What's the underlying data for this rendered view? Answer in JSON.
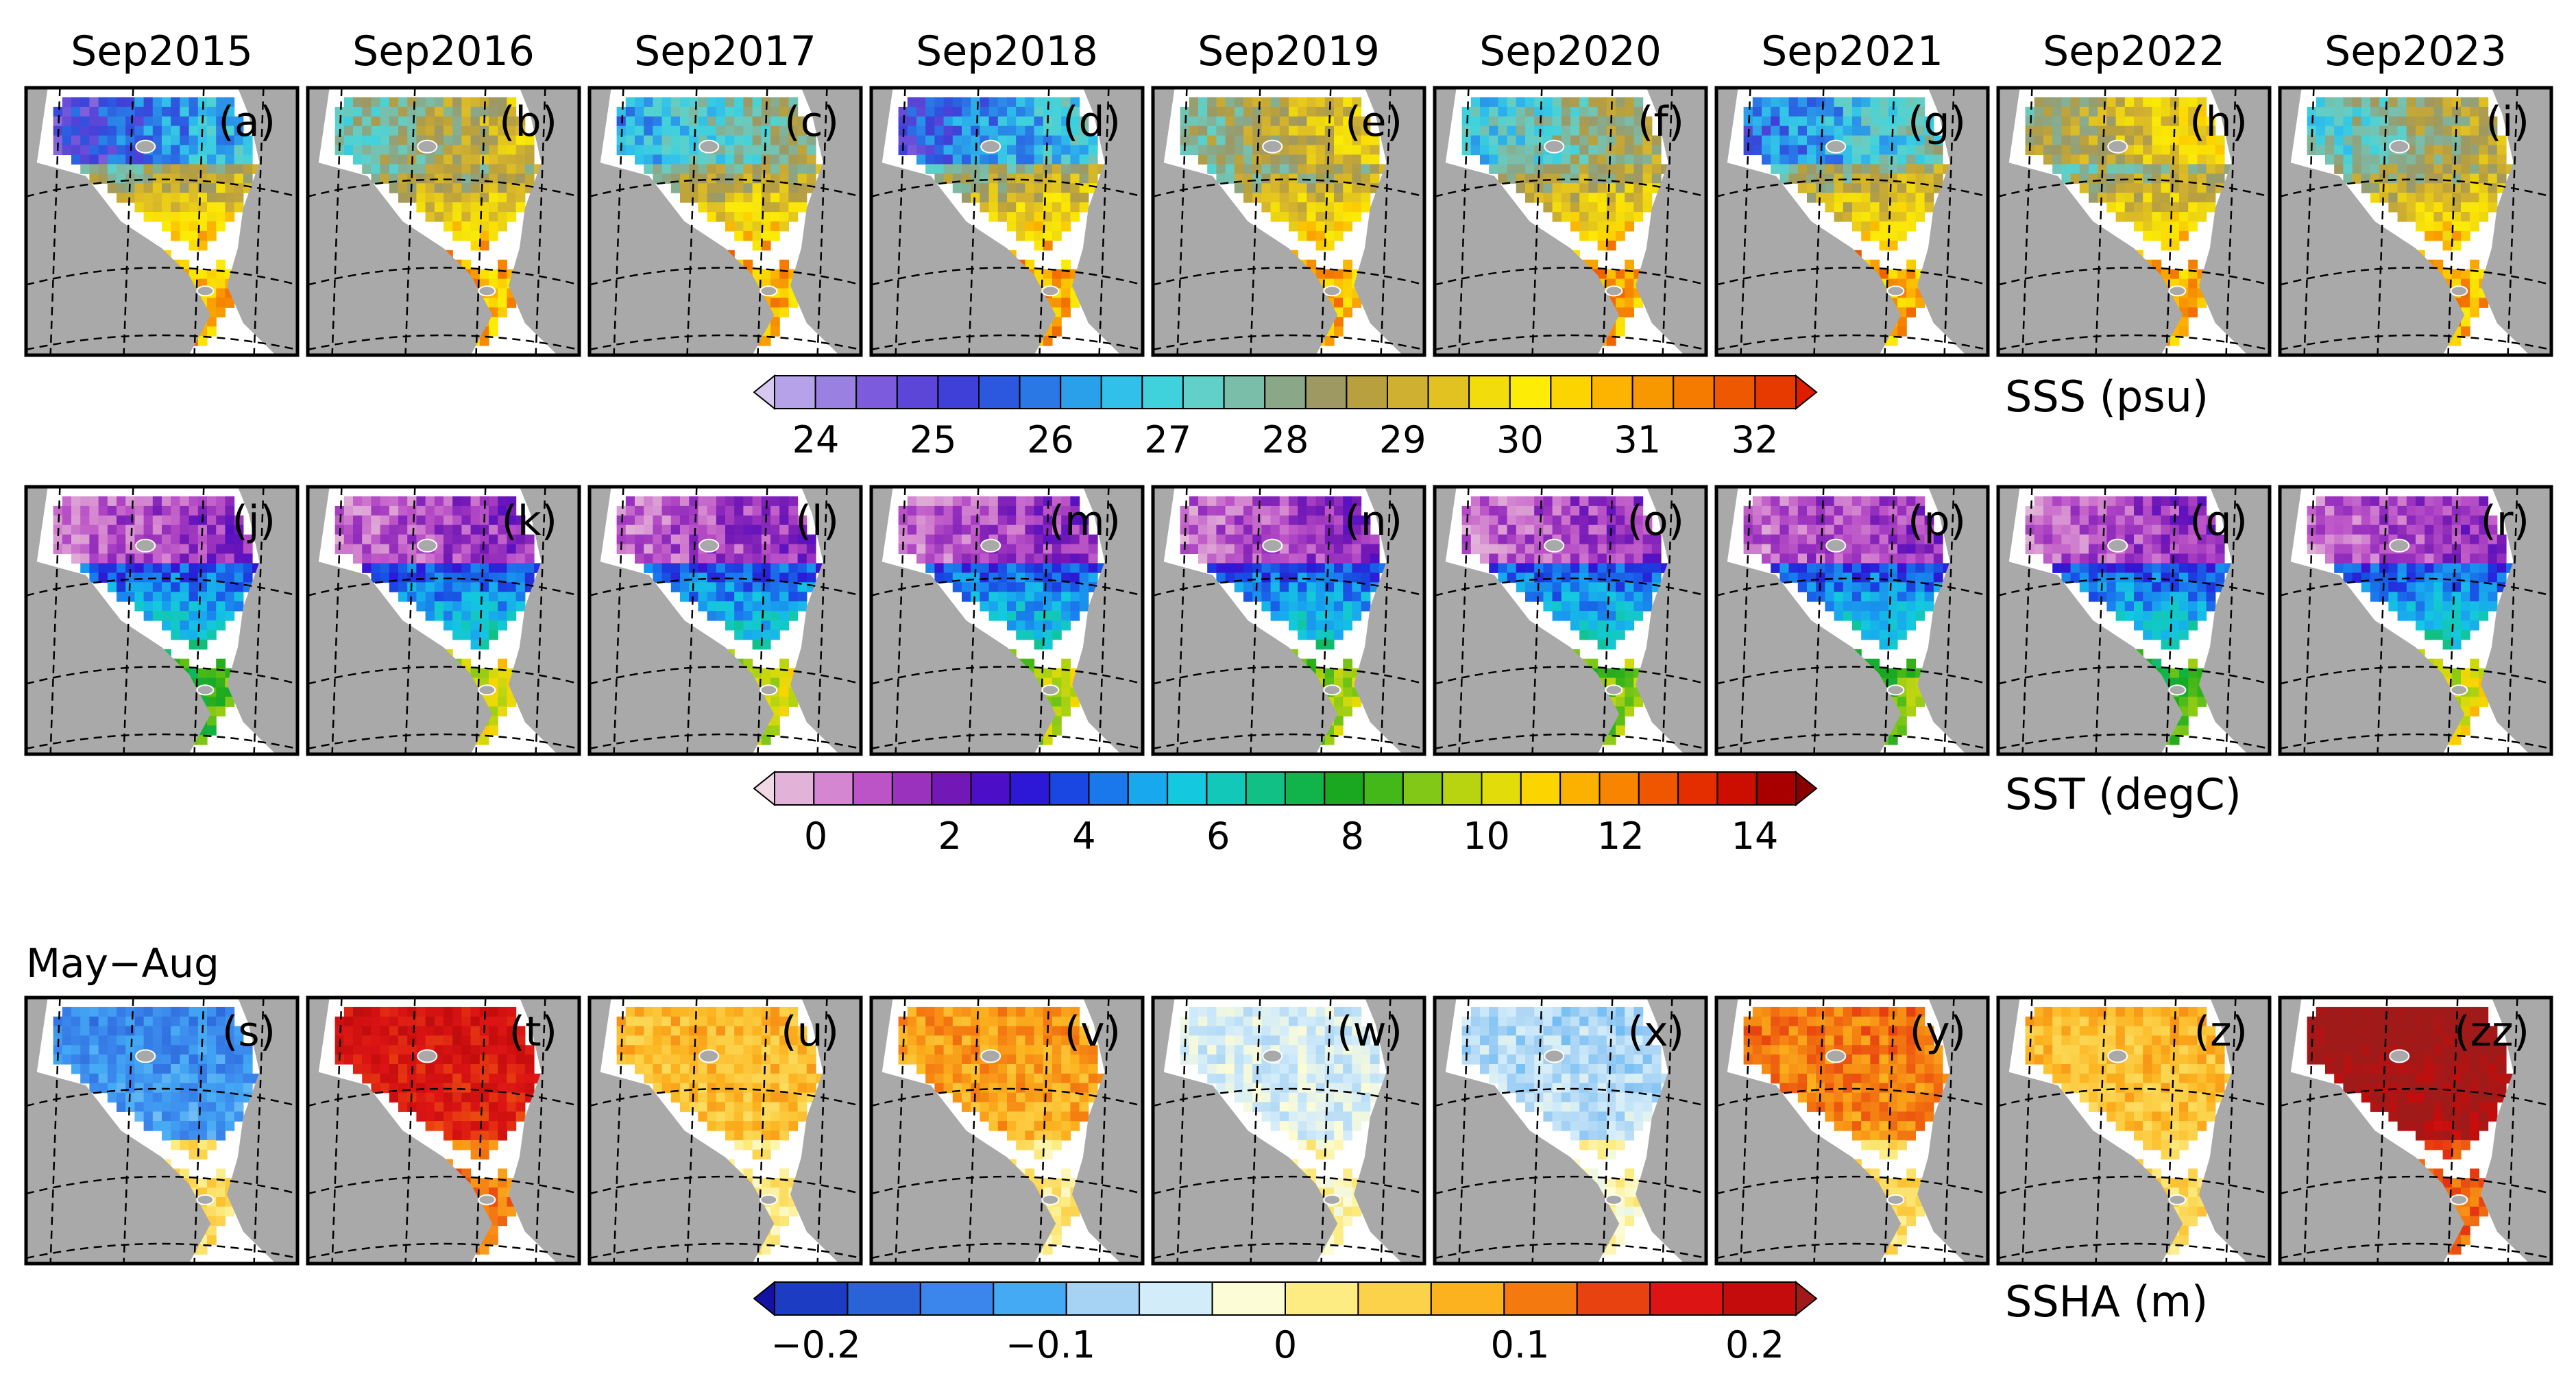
{
  "figure": {
    "years": [
      "Sep2015",
      "Sep2016",
      "Sep2017",
      "Sep2018",
      "Sep2019",
      "Sep2020",
      "Sep2021",
      "Sep2022",
      "Sep2023"
    ],
    "period_label": "May−Aug"
  },
  "chart_data": [
    {
      "type": "heatmap",
      "variable": "SSS",
      "colorbar_label": "SSS (psu)",
      "panel_labels": [
        "(a)",
        "(b)",
        "(c)",
        "(d)",
        "(e)",
        "(f)",
        "(g)",
        "(h)",
        "(i)"
      ],
      "ticks": [
        "24",
        "25",
        "26",
        "27",
        "28",
        "29",
        "30",
        "31",
        "32"
      ],
      "range": [
        24,
        32
      ],
      "colors": [
        "#d6c8f0",
        "#b6a2e8",
        "#9a80e0",
        "#7c5cdc",
        "#5c46d8",
        "#3e40d8",
        "#2c58e0",
        "#2a78e6",
        "#2aa0ea",
        "#30c0ea",
        "#40d2dc",
        "#60d0c8",
        "#7abeaa",
        "#8aa888",
        "#9e9862",
        "#b8a03e",
        "#d0b030",
        "#e2c220",
        "#f2dc0c",
        "#fcec06",
        "#fcd400",
        "#fcb400",
        "#f89800",
        "#f47a00",
        "#ee5800",
        "#e63a00",
        "#de1c00"
      ]
    },
    {
      "type": "heatmap",
      "variable": "SST",
      "colorbar_label": "SST (degC)",
      "panel_labels": [
        "(j)",
        "(k)",
        "(l)",
        "(m)",
        "(n)",
        "(o)",
        "(p)",
        "(q)",
        "(r)"
      ],
      "ticks": [
        "0",
        "2",
        "4",
        "6",
        "8",
        "10",
        "12",
        "14"
      ],
      "range": [
        0,
        14
      ],
      "colors": [
        "#f0d8e4",
        "#e2b2d8",
        "#d486d0",
        "#bc54c8",
        "#9a32be",
        "#7218b6",
        "#4c0ec6",
        "#2c18d6",
        "#1a46e2",
        "#1a78ec",
        "#18a8ee",
        "#14c8e0",
        "#12c8b8",
        "#10c084",
        "#10b44a",
        "#1aa820",
        "#44b818",
        "#82c816",
        "#b8d410",
        "#e2dc0a",
        "#fcd400",
        "#fcb000",
        "#f88400",
        "#f05600",
        "#e42e00",
        "#cc0e00",
        "#a80000",
        "#880000"
      ]
    },
    {
      "type": "heatmap",
      "variable": "SSHA",
      "colorbar_label": "SSHA (m)",
      "panel_labels": [
        "(s)",
        "(t)",
        "(u)",
        "(v)",
        "(w)",
        "(x)",
        "(y)",
        "(z)",
        "(zz)"
      ],
      "ticks": [
        "−0.2",
        "−0.1",
        "0",
        "0.1",
        "0.2"
      ],
      "range": [
        -0.2,
        0.2
      ],
      "colors": [
        "#1212a4",
        "#1c3cc4",
        "#2a62d8",
        "#3a86ec",
        "#44aaf4",
        "#a6d2f4",
        "#d2ecfa",
        "#fcfcd6",
        "#fcec82",
        "#fcd24a",
        "#fcb21e",
        "#f47a10",
        "#e84210",
        "#dc1414",
        "#c40c0c",
        "#a01a1a"
      ]
    }
  ]
}
